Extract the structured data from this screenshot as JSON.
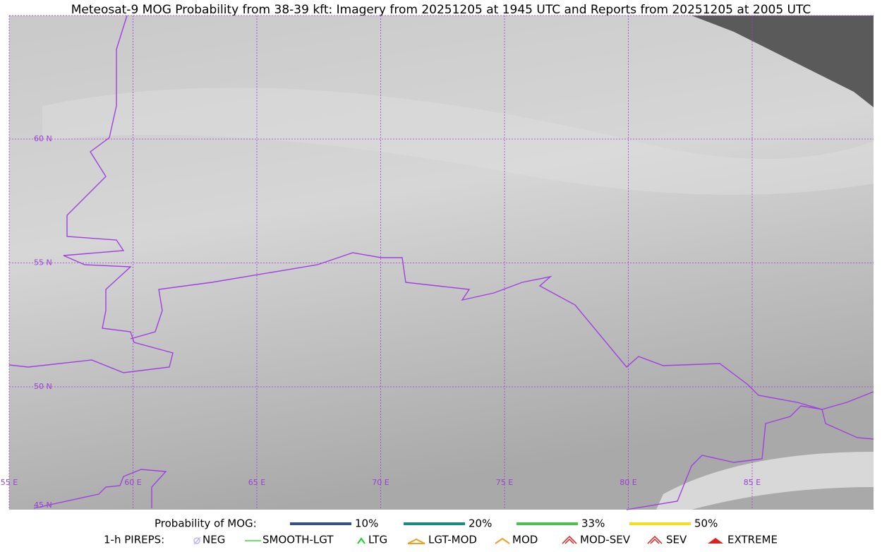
{
  "title": "Meteosat-9 MOG Probability from 38-39 kft: Imagery from 20251205 at 1945 UTC and Reports from 20251205 at 2005 UTC",
  "map": {
    "lat_labels": [
      "60 N",
      "55 N",
      "50 N",
      "45 N"
    ],
    "lon_labels": [
      "55 E",
      "60 E",
      "65 E",
      "70 E",
      "75 E",
      "80 E",
      "85 E"
    ]
  },
  "legend": {
    "probability": {
      "label": "Probability of MOG:",
      "items": [
        "10%",
        "20%",
        "33%",
        "50%"
      ]
    },
    "pireps": {
      "label": "1-h PIREPS:",
      "items": [
        "NEG",
        "SMOOTH-LGT",
        "LTG",
        "LGT-MOD",
        "MOD",
        "MOD-SEV",
        "SEV",
        "EXTREME"
      ]
    }
  }
}
